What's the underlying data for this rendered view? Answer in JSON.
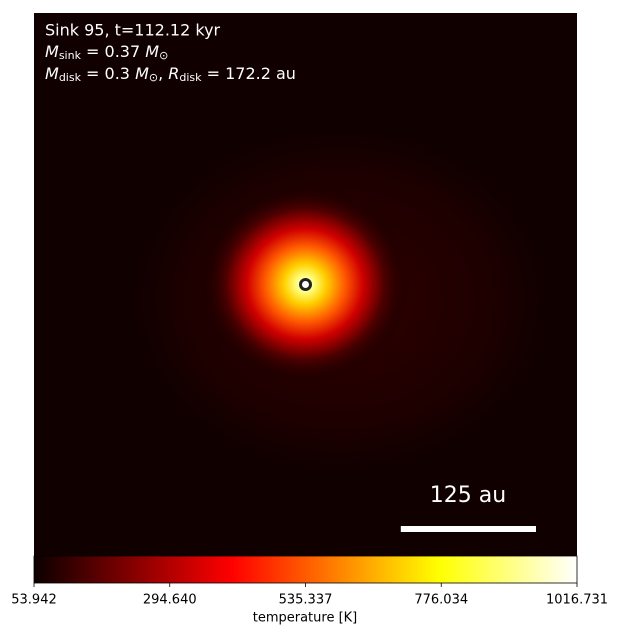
{
  "chart_data": {
    "type": "image",
    "title": "Sink 95, t=112.12 kyr",
    "annotations": [
      [
        {
          "text": "M",
          "italic": true
        },
        {
          "text": "sink",
          "sub": true
        },
        {
          "text": " = 0.37 "
        },
        {
          "text": "M",
          "italic": true
        },
        {
          "text": "⊙",
          "sub": true
        }
      ],
      [
        {
          "text": "M",
          "italic": true
        },
        {
          "text": "disk",
          "sub": true
        },
        {
          "text": " = 0.3 "
        },
        {
          "text": "M",
          "italic": true
        },
        {
          "text": "⊙",
          "sub": true
        },
        {
          "text": ", "
        },
        {
          "text": "R",
          "italic": true
        },
        {
          "text": "disk",
          "sub": true
        },
        {
          "text": " = 172.2 au"
        }
      ]
    ],
    "xlim": [
      -251,
      251
    ],
    "ylim": [
      -251,
      251
    ],
    "sink": {
      "x": 0,
      "y": 0
    },
    "scale_bar": {
      "label": "125 au",
      "length": 125
    },
    "colorbar": {
      "label": "temperature [K]",
      "cmap": "hot",
      "lim": [
        53.942,
        1016.731
      ],
      "ticks": [
        53.942,
        {
          "value": 294.64,
          "label": "294.640"
        },
        535.337,
        776.034,
        1016.731
      ]
    }
  }
}
